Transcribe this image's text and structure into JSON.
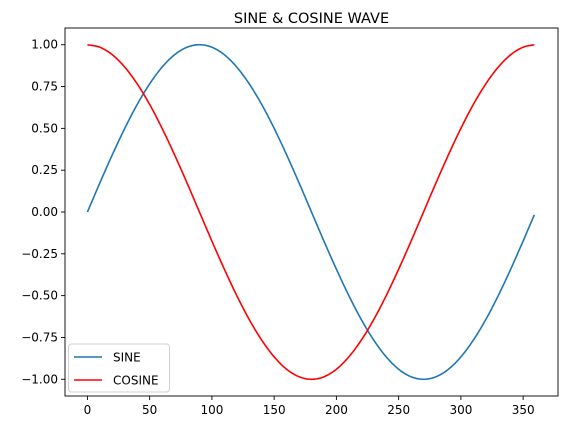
{
  "chart_data": {
    "type": "line",
    "title": "SINE & COSINE WAVE",
    "xlabel": "",
    "ylabel": "",
    "xlim": [
      -18,
      378
    ],
    "ylim": [
      -1.1,
      1.1
    ],
    "x_ticks": [
      0,
      50,
      100,
      150,
      200,
      250,
      300,
      350
    ],
    "x_tick_labels": [
      "0",
      "50",
      "100",
      "150",
      "200",
      "250",
      "300",
      "350"
    ],
    "y_ticks": [
      1.0,
      0.75,
      0.5,
      0.25,
      0.0,
      -0.25,
      -0.5,
      -0.75,
      -1.0
    ],
    "y_tick_labels": [
      "1.00",
      "0.75",
      "0.50",
      "0.25",
      "0.00",
      "−0.25",
      "−0.50",
      "−0.75",
      "−1.00"
    ],
    "grid": false,
    "legend_position": "lower-left",
    "x": [
      0,
      10,
      20,
      30,
      40,
      50,
      60,
      70,
      80,
      90,
      100,
      110,
      120,
      130,
      140,
      150,
      160,
      170,
      180,
      190,
      200,
      210,
      220,
      230,
      240,
      250,
      260,
      270,
      280,
      290,
      300,
      310,
      320,
      330,
      340,
      350,
      359
    ],
    "series": [
      {
        "name": "SINE",
        "color": "#1f77b4",
        "values": [
          0,
          0.174,
          0.342,
          0.5,
          0.643,
          0.766,
          0.866,
          0.94,
          0.985,
          1.0,
          0.985,
          0.94,
          0.866,
          0.766,
          0.643,
          0.5,
          0.342,
          0.174,
          0,
          -0.174,
          -0.342,
          -0.5,
          -0.643,
          -0.766,
          -0.866,
          -0.94,
          -0.985,
          -1.0,
          -0.985,
          -0.94,
          -0.866,
          -0.766,
          -0.643,
          -0.5,
          -0.342,
          -0.174,
          -0.017
        ]
      },
      {
        "name": "COSINE",
        "color": "#ff0000",
        "values": [
          1.0,
          0.985,
          0.94,
          0.866,
          0.766,
          0.643,
          0.5,
          0.342,
          0.174,
          0,
          -0.174,
          -0.342,
          -0.5,
          -0.643,
          -0.766,
          -0.866,
          -0.94,
          -0.985,
          -1.0,
          -0.985,
          -0.94,
          -0.866,
          -0.766,
          -0.643,
          -0.5,
          -0.342,
          -0.174,
          0,
          0.174,
          0.342,
          0.5,
          0.643,
          0.766,
          0.866,
          0.94,
          0.985,
          1.0
        ]
      }
    ]
  }
}
